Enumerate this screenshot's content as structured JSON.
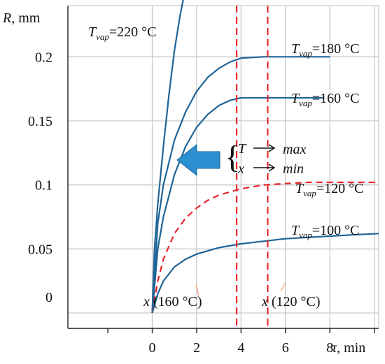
{
  "chart_data": {
    "type": "line",
    "xlabel": "τ, min",
    "ylabel": "R, mm",
    "xlim": [
      -3.8,
      10.2
    ],
    "ylim": [
      -0.012,
      0.24
    ],
    "x_ticks": [
      "0",
      "2",
      "4",
      "6",
      "8"
    ],
    "x_tick_values": [
      0,
      2,
      4,
      6,
      8
    ],
    "y_ticks": [
      "0",
      "0.05",
      "0.1",
      "0.15",
      "0.2"
    ],
    "y_tick_values": [
      0,
      0.05,
      0.1,
      0.15,
      0.2
    ],
    "grid": true,
    "series": [
      {
        "name": "220 °C",
        "label_prefix": "T",
        "label_sub": "vap",
        "label_suffix": "=220 °C",
        "color": "#1f6496",
        "style": "solid",
        "x": [
          0,
          0.1,
          0.25,
          0.5,
          0.75,
          1.0,
          1.25,
          1.4
        ],
        "y": [
          0,
          0.05,
          0.085,
          0.13,
          0.17,
          0.205,
          0.232,
          0.245
        ]
      },
      {
        "name": "180 °C",
        "label_prefix": "T",
        "label_sub": "vap",
        "label_suffix": "=180 °C",
        "color": "#1f6496",
        "style": "solid",
        "x": [
          0,
          0.25,
          0.5,
          1.0,
          1.5,
          2.0,
          2.5,
          3.0,
          3.5,
          4.0,
          5.0,
          6.0,
          7.0,
          8.0
        ],
        "y": [
          0,
          0.07,
          0.1,
          0.135,
          0.157,
          0.173,
          0.184,
          0.191,
          0.196,
          0.199,
          0.2,
          0.2,
          0.2,
          0.2
        ]
      },
      {
        "name": "160 °C",
        "label_prefix": "T",
        "label_sub": "vap",
        "label_suffix": "=160 °C",
        "color": "#1f6496",
        "style": "solid",
        "x": [
          0,
          0.25,
          0.5,
          1.0,
          1.5,
          2.0,
          2.5,
          3.0,
          3.5,
          4.0,
          5.0,
          6.0,
          7.0,
          7.7
        ],
        "y": [
          0,
          0.05,
          0.075,
          0.108,
          0.13,
          0.145,
          0.155,
          0.162,
          0.166,
          0.168,
          0.168,
          0.168,
          0.168,
          0.168
        ]
      },
      {
        "name": "120 °C",
        "label_prefix": "T",
        "label_sub": "vap",
        "label_suffix": "=120 °C",
        "color": "#e8262b",
        "style": "dashed",
        "x": [
          0,
          0.25,
          0.5,
          1.0,
          1.5,
          2.0,
          2.5,
          3.0,
          4.0,
          5.0,
          6.0,
          7.0,
          8.0,
          10.2
        ],
        "y": [
          0,
          0.025,
          0.042,
          0.062,
          0.074,
          0.082,
          0.088,
          0.092,
          0.097,
          0.1,
          0.101,
          0.102,
          0.102,
          0.102
        ]
      },
      {
        "name": "100 °C",
        "label_prefix": "T",
        "label_sub": "vap",
        "label_suffix": "=100 °C",
        "color": "#1f6496",
        "style": "solid",
        "x": [
          0,
          0.25,
          0.5,
          1.0,
          1.5,
          2.0,
          3.0,
          4.0,
          5.0,
          6.0,
          7.0,
          8.0,
          9.0,
          10.2
        ],
        "y": [
          0,
          0.015,
          0.025,
          0.036,
          0.042,
          0.046,
          0.051,
          0.054,
          0.056,
          0.058,
          0.059,
          0.06,
          0.061,
          0.062
        ]
      }
    ],
    "vlines": [
      {
        "x": 3.8,
        "label_prefix": "x",
        "label_suffix": " (160 °C)",
        "color": "#e8262b"
      },
      {
        "x": 5.2,
        "label_prefix": "x",
        "label_suffix": " (120 °C)",
        "color": "#e8262b"
      }
    ],
    "annotation": {
      "line1_var": "T",
      "line1_val": "max",
      "line2_var": "x",
      "line2_val": "min",
      "arrow_color": "#2b8fd0"
    }
  }
}
